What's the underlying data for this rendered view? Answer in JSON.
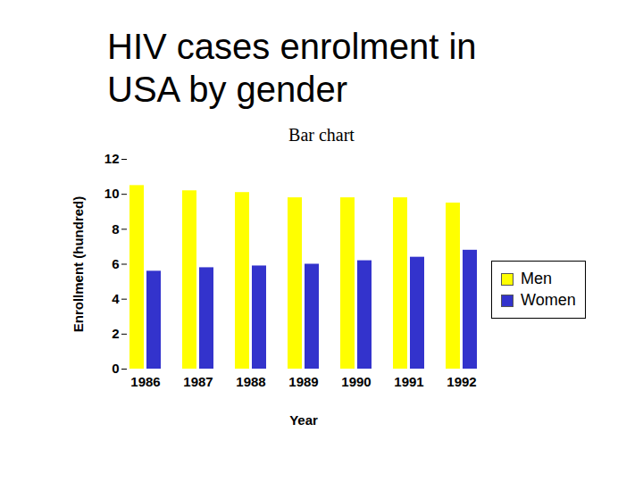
{
  "chart_data": {
    "type": "bar",
    "title": "HIV cases enrolment in USA by gender",
    "subtitle": "Bar chart",
    "x_label": "Year",
    "y_label": "Enrollment (hundred)",
    "categories": [
      "1986",
      "1987",
      "1988",
      "1989",
      "1990",
      "1991",
      "1992"
    ],
    "series": [
      {
        "name": "Men",
        "color": "#ffff00",
        "values": [
          10.5,
          10.2,
          10.1,
          9.8,
          9.8,
          9.8,
          9.5
        ]
      },
      {
        "name": "Women",
        "color": "#3333cc",
        "values": [
          5.6,
          5.8,
          5.9,
          6.0,
          6.2,
          6.4,
          6.8
        ]
      }
    ],
    "ylim": [
      0,
      12
    ],
    "yticks": [
      0,
      2,
      4,
      6,
      8,
      10,
      12
    ],
    "grid": false,
    "legend": "right"
  }
}
